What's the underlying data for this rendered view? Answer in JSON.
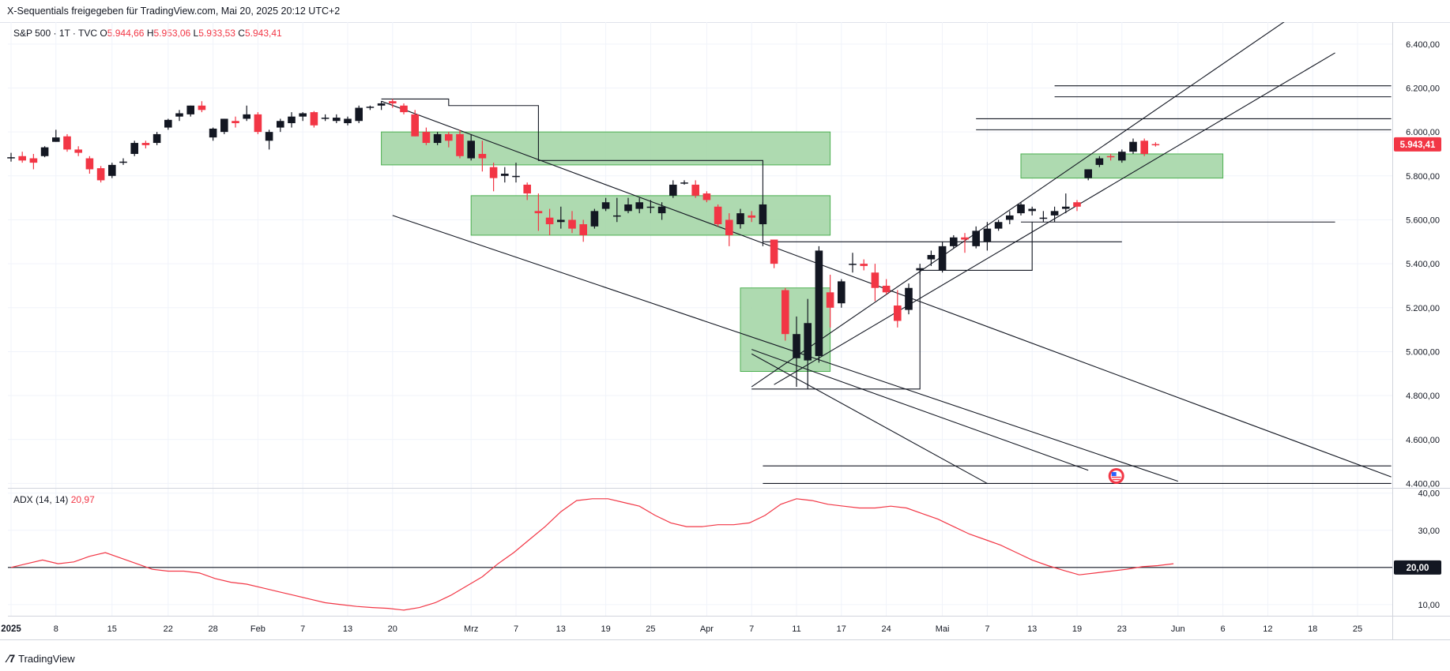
{
  "header": {
    "author": "X-Sequentials",
    "published_via": "freigegeben für TradingView.com,",
    "timestamp": "Mai 20, 2025 20:12 UTC+2"
  },
  "legend": {
    "symbol": "S&P 500 · 1T · TVC",
    "o_label": "O",
    "o_value": "5.944,66",
    "h_label": "H",
    "h_value": "5.953,06",
    "l_label": "L",
    "l_value": "5.933,53",
    "c_label": "C",
    "c_value": "5.943,41"
  },
  "adx_legend": {
    "name": "ADX (14, 14)",
    "value": "20,97"
  },
  "price_tag": "5.943,41",
  "adx_tag": "20,00",
  "footer": {
    "brand": "TradingView"
  },
  "colors": {
    "up": "#131722",
    "down": "#f23645",
    "zone_fill": "#a5d6a7",
    "zone_stroke": "#4caf50",
    "adx": "#f23645",
    "grid": "#f0f3fa"
  },
  "chart_data": [
    {
      "type": "candlestick",
      "price_axis_ticks": [
        "6.400,00",
        "6.200,00",
        "6.000,00",
        "5.800,00",
        "5.600,00",
        "5.400,00",
        "5.200,00",
        "5.000,00",
        "4.800,00",
        "4.600,00",
        "4.400,00"
      ],
      "price_axis_values": [
        6400,
        6200,
        6000,
        5800,
        5600,
        5400,
        5200,
        5000,
        4800,
        4600,
        4400
      ],
      "ylim": [
        4380,
        6500
      ],
      "time_axis_labels": [
        {
          "label": "2025",
          "bar": 0,
          "bold": true
        },
        {
          "label": "8",
          "bar": 4
        },
        {
          "label": "15",
          "bar": 9
        },
        {
          "label": "22",
          "bar": 14
        },
        {
          "label": "28",
          "bar": 18
        },
        {
          "label": "Feb",
          "bar": 22
        },
        {
          "label": "7",
          "bar": 26
        },
        {
          "label": "13",
          "bar": 30
        },
        {
          "label": "20",
          "bar": 34
        },
        {
          "label": "Mrz",
          "bar": 41
        },
        {
          "label": "7",
          "bar": 45
        },
        {
          "label": "13",
          "bar": 49
        },
        {
          "label": "19",
          "bar": 53
        },
        {
          "label": "25",
          "bar": 57
        },
        {
          "label": "Apr",
          "bar": 62
        },
        {
          "label": "7",
          "bar": 66
        },
        {
          "label": "11",
          "bar": 70
        },
        {
          "label": "17",
          "bar": 74
        },
        {
          "label": "24",
          "bar": 78
        },
        {
          "label": "Mai",
          "bar": 83
        },
        {
          "label": "7",
          "bar": 87
        },
        {
          "label": "13",
          "bar": 91
        },
        {
          "label": "19",
          "bar": 95
        },
        {
          "label": "23",
          "bar": 99
        },
        {
          "label": "Jun",
          "bar": 104
        },
        {
          "label": "6",
          "bar": 108
        },
        {
          "label": "12",
          "bar": 112
        },
        {
          "label": "18",
          "bar": 116
        },
        {
          "label": "25",
          "bar": 120
        }
      ],
      "bars_total": 123,
      "ohlc": [
        [
          5880,
          5905,
          5865,
          5885
        ],
        [
          5890,
          5910,
          5860,
          5870
        ],
        [
          5880,
          5900,
          5830,
          5860
        ],
        [
          5890,
          5935,
          5885,
          5930
        ],
        [
          5955,
          6010,
          5955,
          5975
        ],
        [
          5980,
          5990,
          5910,
          5920
        ],
        [
          5920,
          5935,
          5890,
          5905
        ],
        [
          5880,
          5890,
          5810,
          5830
        ],
        [
          5835,
          5845,
          5770,
          5780
        ],
        [
          5800,
          5860,
          5790,
          5850
        ],
        [
          5860,
          5880,
          5850,
          5865
        ],
        [
          5900,
          5960,
          5890,
          5950
        ],
        [
          5950,
          5960,
          5925,
          5940
        ],
        [
          5950,
          6000,
          5940,
          5990
        ],
        [
          6020,
          6060,
          6010,
          6055
        ],
        [
          6070,
          6100,
          6050,
          6085
        ],
        [
          6080,
          6120,
          6070,
          6120
        ],
        [
          6120,
          6140,
          6090,
          6100
        ],
        [
          5975,
          6020,
          5960,
          6015
        ],
        [
          6000,
          6060,
          5990,
          6060
        ],
        [
          6050,
          6070,
          6020,
          6040
        ],
        [
          6060,
          6120,
          6050,
          6080
        ],
        [
          6080,
          6090,
          5990,
          6000
        ],
        [
          5960,
          6010,
          5920,
          6000
        ],
        [
          6020,
          6060,
          6000,
          6050
        ],
        [
          6040,
          6090,
          6020,
          6070
        ],
        [
          6070,
          6090,
          6050,
          6085
        ],
        [
          6090,
          6095,
          6020,
          6030
        ],
        [
          6060,
          6080,
          6050,
          6065
        ],
        [
          6050,
          6080,
          6040,
          6065
        ],
        [
          6040,
          6070,
          6030,
          6060
        ],
        [
          6050,
          6120,
          6040,
          6110
        ],
        [
          6110,
          6120,
          6100,
          6115
        ],
        [
          6120,
          6140,
          6100,
          6130
        ],
        [
          6140,
          6150,
          6110,
          6130
        ],
        [
          6120,
          6130,
          6080,
          6090
        ],
        [
          6080,
          6100,
          5980,
          5980
        ],
        [
          6000,
          6020,
          5940,
          5950
        ],
        [
          5950,
          6000,
          5940,
          5990
        ],
        [
          5990,
          6000,
          5930,
          5960
        ],
        [
          5990,
          6010,
          5880,
          5890
        ],
        [
          5880,
          5990,
          5870,
          5960
        ],
        [
          5900,
          5960,
          5820,
          5880
        ],
        [
          5840,
          5860,
          5730,
          5790
        ],
        [
          5800,
          5840,
          5770,
          5810
        ],
        [
          5800,
          5860,
          5770,
          5800
        ],
        [
          5760,
          5770,
          5690,
          5720
        ],
        [
          5640,
          5720,
          5550,
          5630
        ],
        [
          5610,
          5650,
          5530,
          5580
        ],
        [
          5590,
          5660,
          5560,
          5600
        ],
        [
          5600,
          5640,
          5540,
          5560
        ],
        [
          5580,
          5600,
          5500,
          5530
        ],
        [
          5570,
          5650,
          5560,
          5640
        ],
        [
          5650,
          5700,
          5640,
          5680
        ],
        [
          5620,
          5700,
          5590,
          5620
        ],
        [
          5640,
          5700,
          5630,
          5670
        ],
        [
          5650,
          5700,
          5630,
          5680
        ],
        [
          5660,
          5690,
          5630,
          5660
        ],
        [
          5630,
          5680,
          5600,
          5660
        ],
        [
          5710,
          5780,
          5700,
          5760
        ],
        [
          5770,
          5780,
          5760,
          5770
        ],
        [
          5760,
          5780,
          5700,
          5710
        ],
        [
          5720,
          5730,
          5680,
          5690
        ],
        [
          5660,
          5670,
          5570,
          5580
        ],
        [
          5600,
          5630,
          5480,
          5530
        ],
        [
          5580,
          5650,
          5560,
          5630
        ],
        [
          5620,
          5640,
          5590,
          5610
        ],
        [
          5580,
          5680,
          5570,
          5670
        ],
        [
          5510,
          5510,
          5380,
          5400
        ],
        [
          5280,
          5290,
          5050,
          5080
        ],
        [
          4970,
          5160,
          4840,
          5080
        ],
        [
          4960,
          5240,
          4830,
          5130
        ],
        [
          4980,
          5480,
          4950,
          5460
        ],
        [
          5270,
          5350,
          5110,
          5200
        ],
        [
          5220,
          5330,
          5200,
          5320
        ],
        [
          5400,
          5450,
          5360,
          5400
        ],
        [
          5400,
          5420,
          5370,
          5390
        ],
        [
          5360,
          5400,
          5230,
          5290
        ],
        [
          5300,
          5330,
          5260,
          5270
        ],
        [
          5210,
          5280,
          5110,
          5140
        ],
        [
          5190,
          5310,
          5170,
          5290
        ],
        [
          5370,
          5400,
          5350,
          5380
        ],
        [
          5420,
          5460,
          5390,
          5440
        ],
        [
          5370,
          5500,
          5360,
          5480
        ],
        [
          5480,
          5530,
          5470,
          5520
        ],
        [
          5520,
          5540,
          5450,
          5510
        ],
        [
          5480,
          5570,
          5470,
          5550
        ],
        [
          5500,
          5590,
          5460,
          5560
        ],
        [
          5560,
          5600,
          5550,
          5590
        ],
        [
          5600,
          5640,
          5580,
          5620
        ],
        [
          5630,
          5680,
          5620,
          5670
        ],
        [
          5640,
          5660,
          5620,
          5650
        ],
        [
          5610,
          5640,
          5590,
          5610
        ],
        [
          5620,
          5660,
          5590,
          5640
        ],
        [
          5650,
          5720,
          5630,
          5660
        ],
        [
          5680,
          5690,
          5640,
          5660
        ],
        [
          5790,
          5830,
          5780,
          5830
        ],
        [
          5850,
          5890,
          5840,
          5880
        ],
        [
          5890,
          5900,
          5870,
          5885
        ],
        [
          5870,
          5920,
          5860,
          5910
        ],
        [
          5910,
          5970,
          5900,
          5955
        ],
        [
          5960,
          5970,
          5890,
          5900
        ],
        [
          5944.66,
          5953.06,
          5933.53,
          5943.41
        ]
      ],
      "zones": [
        {
          "from_bar": 33,
          "to_bar": 73,
          "top": 6000,
          "bottom": 5850
        },
        {
          "from_bar": 41,
          "to_bar": 73,
          "top": 5710,
          "bottom": 5530
        },
        {
          "from_bar": 65,
          "to_bar": 73,
          "top": 5290,
          "bottom": 4910
        },
        {
          "from_bar": 90,
          "to_bar": 108,
          "top": 5900,
          "bottom": 5790
        }
      ],
      "lines": [
        {
          "x1": 33,
          "y1": 6140,
          "x2": 123,
          "y2": 4430
        },
        {
          "x1": 34,
          "y1": 5620,
          "x2": 104,
          "y2": 4410
        },
        {
          "x1": 66,
          "y1": 4840,
          "x2": 116,
          "y2": 6590
        },
        {
          "x1": 68,
          "y1": 4850,
          "x2": 118,
          "y2": 6360
        },
        {
          "x1": 66,
          "y1": 4990,
          "x2": 87,
          "y2": 4400
        },
        {
          "x1": 66,
          "y1": 5010,
          "x2": 96,
          "y2": 4460
        },
        {
          "x1": 67,
          "y1": 4480,
          "x2": 123,
          "y2": 4480
        },
        {
          "x1": 67,
          "y1": 4400,
          "x2": 123,
          "y2": 4400
        },
        {
          "x1": 67,
          "y1": 5500,
          "x2": 99,
          "y2": 5500
        },
        {
          "x1": 90,
          "y1": 5590,
          "x2": 118,
          "y2": 5590
        },
        {
          "x1": 86,
          "y1": 6060,
          "x2": 123,
          "y2": 6060
        },
        {
          "x1": 86,
          "y1": 6010,
          "x2": 123,
          "y2": 6010
        },
        {
          "x1": 93,
          "y1": 6210,
          "x2": 123,
          "y2": 6210
        },
        {
          "x1": 93,
          "y1": 6160,
          "x2": 123,
          "y2": 6160
        }
      ],
      "steps": [
        [
          [
            33,
            6150
          ],
          [
            39,
            6150
          ],
          [
            39,
            6120
          ],
          [
            47,
            6120
          ],
          [
            47,
            5870
          ],
          [
            67,
            5870
          ],
          [
            67,
            5480
          ]
        ],
        [
          [
            66,
            4830
          ],
          [
            81,
            4830
          ],
          [
            81,
            5370
          ],
          [
            91,
            5370
          ],
          [
            91,
            5590
          ]
        ]
      ]
    },
    {
      "type": "line",
      "name": "ADX (14, 14)",
      "axis_ticks": [
        "40,00",
        "30,00",
        "20,00",
        "10,00"
      ],
      "axis_values": [
        40,
        30,
        20,
        10
      ],
      "ylim": [
        7,
        41
      ],
      "reference_line": 20,
      "values": [
        20,
        21,
        22,
        21,
        21.5,
        23,
        24,
        22.5,
        21,
        19.5,
        19,
        19,
        18.5,
        17,
        16,
        15.5,
        14.5,
        13.5,
        12.5,
        11.5,
        10.5,
        10,
        9.5,
        9.2,
        9,
        8.5,
        9.2,
        10.5,
        12.5,
        15,
        17.5,
        21,
        24,
        27.5,
        31,
        35,
        38,
        38.5,
        38.5,
        37.5,
        36.5,
        34,
        32,
        31,
        31,
        31.5,
        31.5,
        32,
        34,
        37,
        38.5,
        38,
        37,
        36.5,
        36,
        36,
        36.5,
        36,
        34.5,
        33,
        31,
        29,
        27.5,
        26,
        24,
        22,
        20.5,
        19.2,
        18,
        18.5,
        19,
        19.5,
        20.2,
        20.5,
        21
      ],
      "value_bar_start": 0,
      "value_bar_step": 1.4
    }
  ]
}
